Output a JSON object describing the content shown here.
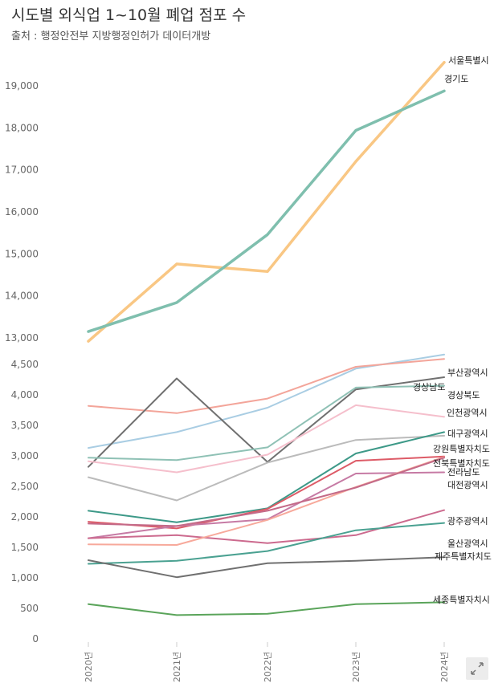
{
  "header": {
    "title": "시도별 외식업 1~10월  폐업 점포 수",
    "subtitle": "출처 : 행정안전부 지방행정인허가 데이터개방"
  },
  "chart_data": {
    "type": "line",
    "title": "시도별 외식업 1~10월  폐업 점포 수",
    "subtitle": "출처 : 행정안전부 지방행정인허가 데이터개방",
    "xlabel": "",
    "ylabel": "",
    "grid": false,
    "legend": "direct labels at line ends",
    "categories": [
      "2020년",
      "2021년",
      "2022년",
      "2023년",
      "2024년"
    ],
    "panels": [
      {
        "ylim": [
          12700,
          19600
        ],
        "yticks": [
          "13,000",
          "14,000",
          "15,000",
          "16,000",
          "17,000",
          "18,000",
          "19,000"
        ],
        "series": [
          {
            "name": "서울특별시",
            "values": [
              12920,
              14760,
              14580,
              17200,
              19560
            ],
            "color": "#f9c784",
            "width": 3.5
          },
          {
            "name": "경기도",
            "values": [
              13150,
              13840,
              15460,
              17940,
              18880
            ],
            "color": "#7fbfae",
            "width": 3.5
          }
        ]
      },
      {
        "ylim": [
          0,
          4800
        ],
        "yticks": [
          "0",
          "500",
          "1,000",
          "1,500",
          "2,000",
          "2,500",
          "3,000",
          "3,500",
          "4,000",
          "4,500"
        ],
        "series": [
          {
            "name": "부산광역시",
            "values": [
              3130,
              3390,
              3790,
              4430,
              4660
            ],
            "color": "#a9cde3",
            "width": 2
          },
          {
            "name": "경상남도",
            "values": [
              3820,
              3700,
              3940,
              4460,
              4590
            ],
            "color": "#f3a59a",
            "width": 2
          },
          {
            "name": "경상북도",
            "values": [
              2820,
              4270,
              2900,
              4090,
              4290
            ],
            "color": "#707070",
            "width": 2
          },
          {
            "name": "인천광역시",
            "values": [
              2970,
              2930,
              3140,
              4120,
              4150
            ],
            "color": "#8fc1b5",
            "width": 2
          },
          {
            "name": "대구광역시",
            "values": [
              2910,
              2730,
              3020,
              3830,
              3640
            ],
            "color": "#f5bfcc",
            "width": 2
          },
          {
            "name": "강원특별자치도",
            "values": [
              2650,
              2270,
              2890,
              3260,
              3330
            ],
            "color": "#bbbbbb",
            "width": 2
          },
          {
            "name": "전북특별자치도",
            "values": [
              2100,
              1910,
              2140,
              3040,
              3390
            ],
            "color": "#3d9988",
            "width": 2
          },
          {
            "name": "전라남도",
            "values": [
              1920,
              1810,
              2130,
              2920,
              2990
            ],
            "color": "#dd5b67",
            "width": 2
          },
          {
            "name": "대전광역시",
            "values": [
              1650,
              1850,
              1960,
              2710,
              2730
            ],
            "color": "#c67aa4",
            "width": 2
          },
          {
            "name": "광주광역시",
            "values": [
              1650,
              1700,
              1570,
              1700,
              2110
            ],
            "color": "#cc6a8e",
            "width": 2
          },
          {
            "name": "울산광역시",
            "values": [
              1230,
              1280,
              1440,
              1780,
              1900
            ],
            "color": "#4aa191",
            "width": 2
          },
          {
            "name": "제주특별자치도",
            "values": [
              1290,
              1010,
              1240,
              1280,
              1340
            ],
            "color": "#707070",
            "width": 2
          },
          {
            "name": "세종특별자치시",
            "values": [
              570,
              390,
              410,
              570,
              600
            ],
            "color": "#5aa45a",
            "width": 2
          },
          {
            "name": "",
            "values": [
              1550,
              1540,
              1950,
              2490,
              2980
            ],
            "color": "#f7a99b",
            "width": 2
          },
          {
            "name": "",
            "values": [
              1890,
              1850,
              2100,
              2480,
              2970
            ],
            "color": "#c46a88",
            "width": 2
          }
        ]
      }
    ]
  }
}
